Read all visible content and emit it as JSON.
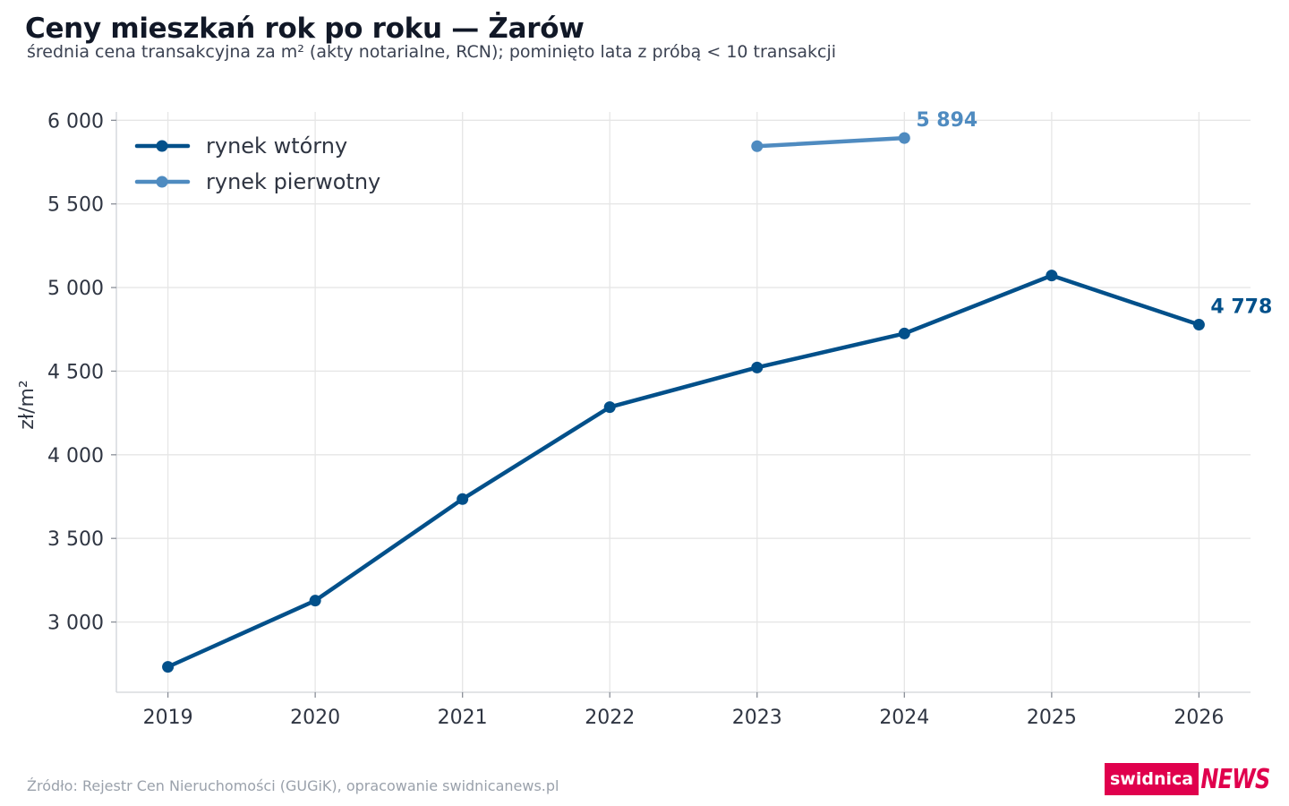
{
  "title": "Ceny mieszkań rok po roku — Żarów",
  "subtitle": "średnia cena transakcyjna za m² (akty notarialne, RCN); pominięto lata z próbą < 10 transakcji",
  "source": "Źródło: Rejestr Cen Nieruchomości (GUGiK), opracowanie swidnicanews.pl",
  "logo": {
    "part1": "swidnica",
    "part2": "NEWS",
    "color": "#e0004d"
  },
  "chart_data": {
    "type": "line",
    "ylabel": "zł/m²",
    "xlabel": "",
    "x": [
      2019,
      2020,
      2021,
      2022,
      2023,
      2024,
      2025,
      2026
    ],
    "x_tick_labels": [
      "2019",
      "2020",
      "2021",
      "2022",
      "2023",
      "2024",
      "2025",
      "2026"
    ],
    "y_ticks": [
      3000,
      3500,
      4000,
      4500,
      5000,
      5500,
      6000
    ],
    "y_tick_labels": [
      "3 000",
      "3 500",
      "4 000",
      "4 500",
      "5 000",
      "5 500",
      "6 000"
    ],
    "ylim": [
      2580,
      6050
    ],
    "xlim": [
      2018.65,
      2026.35
    ],
    "grid": true,
    "legend_position": "top-left",
    "series": [
      {
        "name": "rynek wtórny",
        "color": "#02508a",
        "x": [
          2019,
          2020,
          2021,
          2022,
          2023,
          2024,
          2025,
          2026
        ],
        "values": [
          2732,
          3128,
          3735,
          4285,
          4522,
          4725,
          5072,
          4778
        ],
        "end_label": "4 778"
      },
      {
        "name": "rynek pierwotny",
        "color": "#4f8bc0",
        "x": [
          2023,
          2024
        ],
        "values": [
          5845,
          5894
        ],
        "end_label": "5 894"
      }
    ]
  }
}
